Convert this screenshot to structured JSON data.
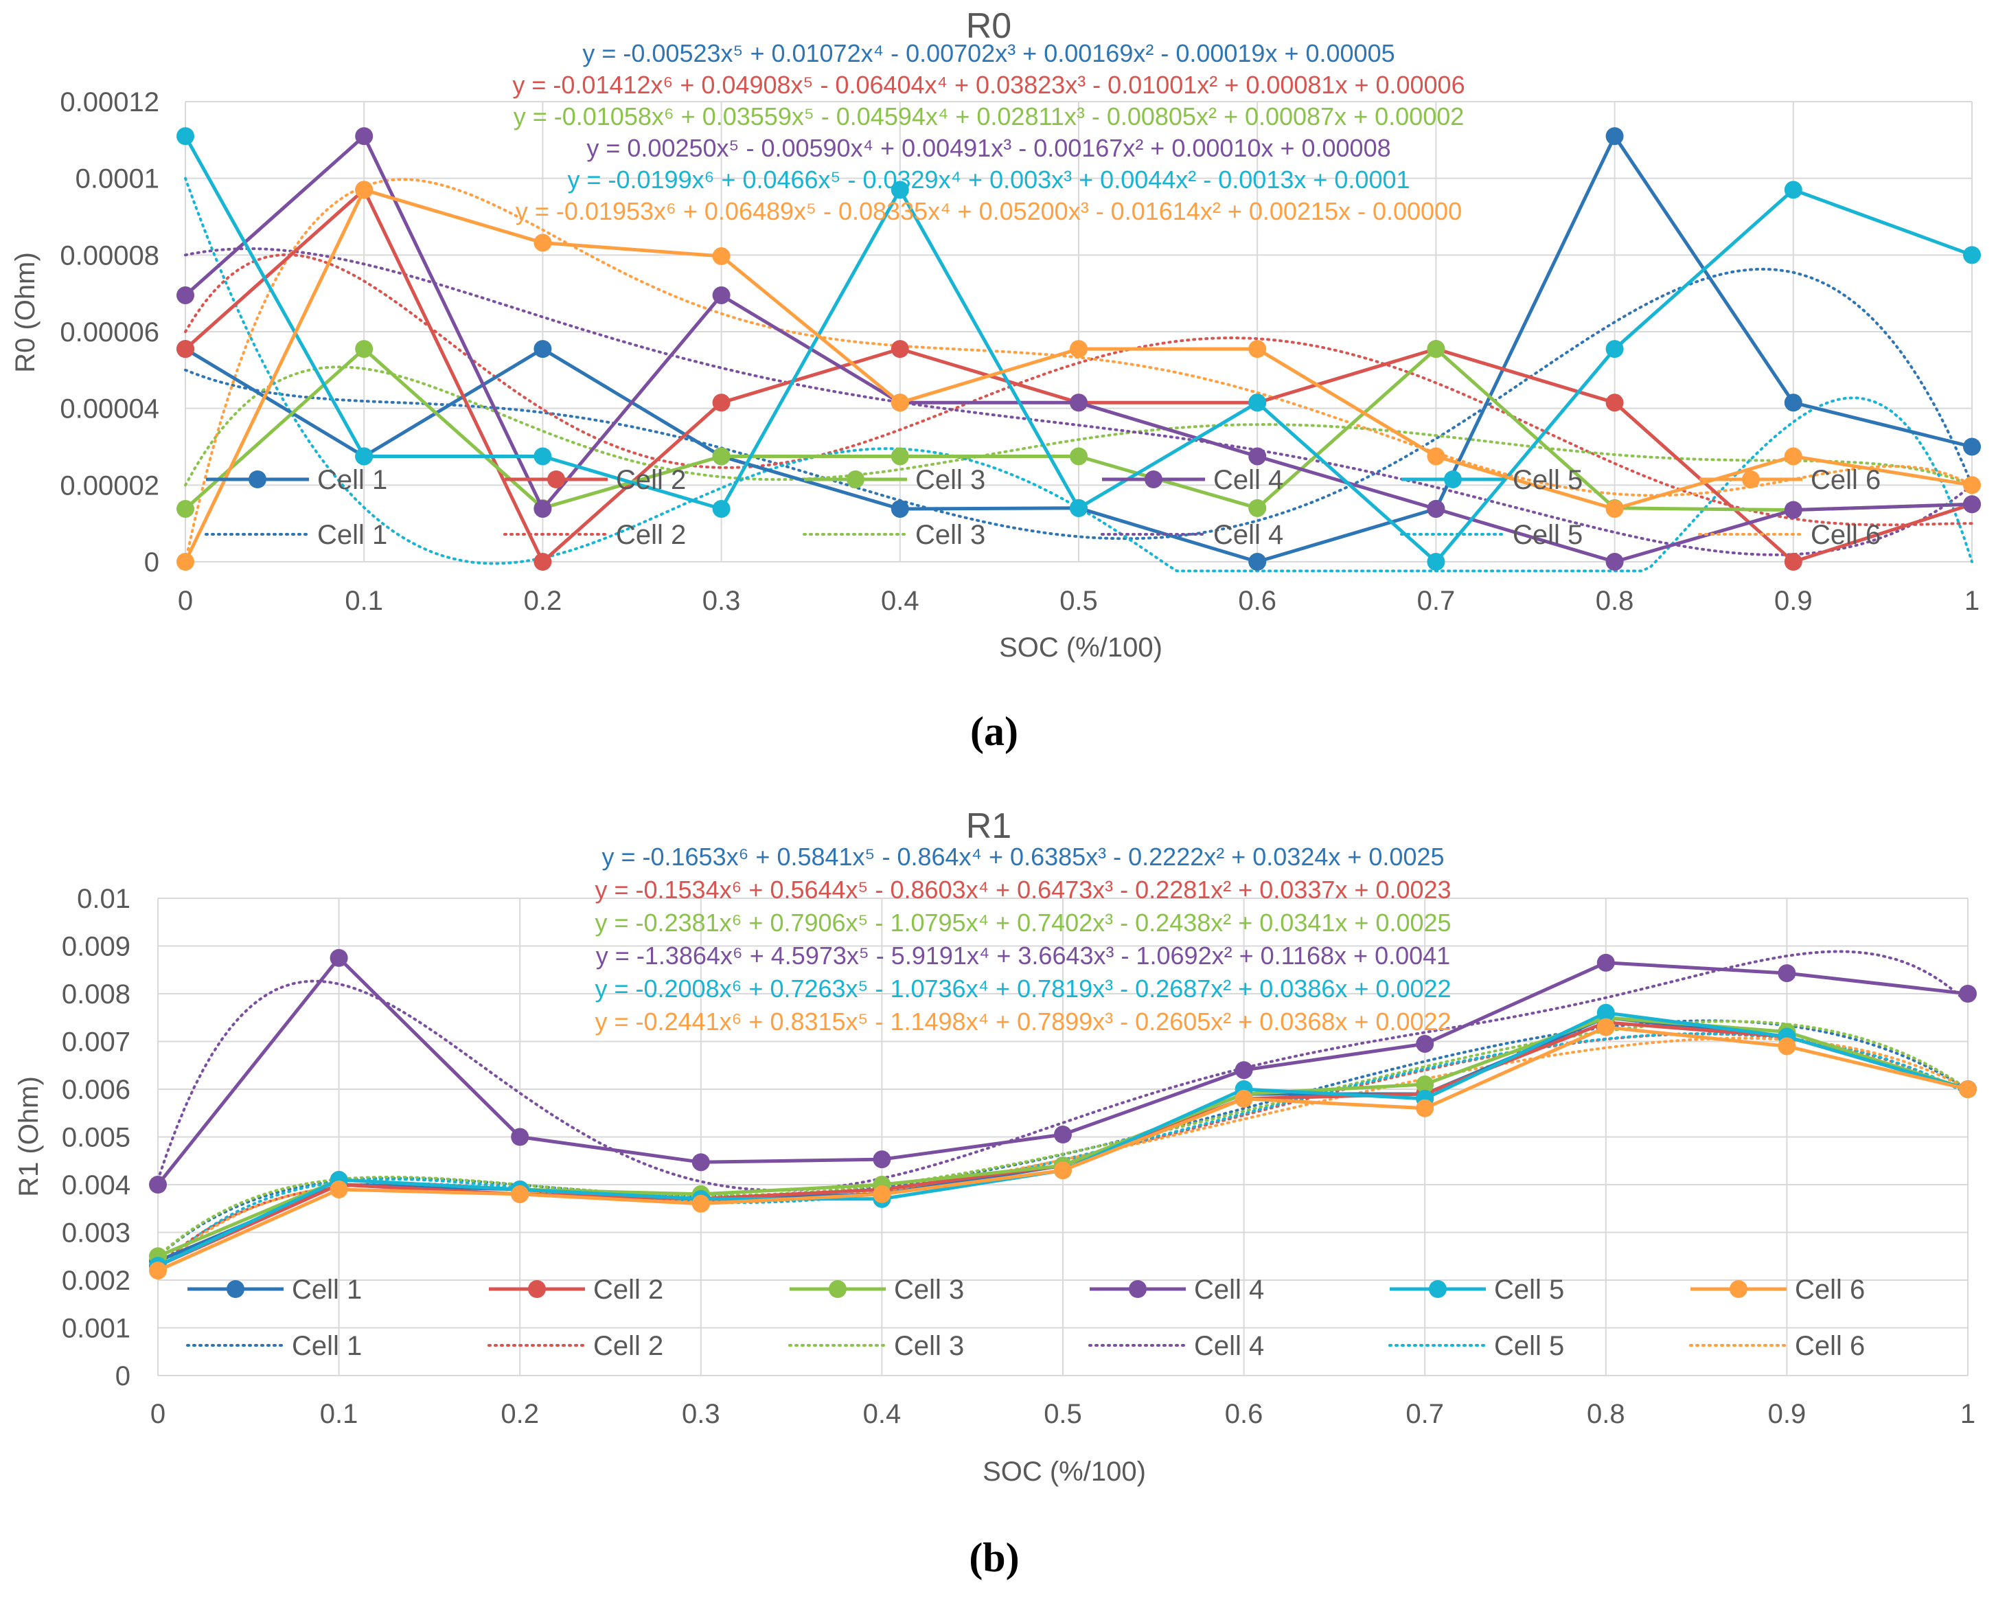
{
  "colors": {
    "cell_1": "#2E75B6",
    "cell_2": "#D9534F",
    "cell_3": "#8BC34A",
    "cell_4": "#7B4FA0",
    "cell_5": "#17B4D4",
    "cell_6": "#FF9F40",
    "grid": "#D9D9D9",
    "axis_text": "#595959"
  },
  "chart_data": [
    {
      "type": "line",
      "title": "R0",
      "caption": "(a)",
      "xlabel": "SOC (%/100)",
      "ylabel": "R0 (Ohm)",
      "xlim": [
        0,
        1
      ],
      "ylim": [
        0,
        0.00012
      ],
      "x_ticks": [
        "0",
        "0.1",
        "0.2",
        "0.3",
        "0.4",
        "0.5",
        "0.6",
        "0.7",
        "0.8",
        "0.9",
        "1"
      ],
      "y_ticks": [
        "0",
        "0.00002",
        "0.00004",
        "0.00006",
        "0.00008",
        "0.0001",
        "0.00012"
      ],
      "grid": true,
      "legend_position": "bottom-inside",
      "x": [
        0,
        0.1,
        0.2,
        0.3,
        0.4,
        0.5,
        0.6,
        0.7,
        0.8,
        0.9,
        1
      ],
      "series": [
        {
          "name": "Cell 1",
          "values": [
            5.55e-05,
            2.75e-05,
            5.55e-05,
            2.75e-05,
            1.38e-05,
            1.4e-05,
            0.0,
            1.38e-05,
            0.000111,
            4.15e-05,
            3e-05
          ]
        },
        {
          "name": "Cell 2",
          "values": [
            5.55e-05,
            9.7e-05,
            0.0,
            4.15e-05,
            5.55e-05,
            4.15e-05,
            4.15e-05,
            5.55e-05,
            4.15e-05,
            0.0,
            1.5e-05
          ]
        },
        {
          "name": "Cell 3",
          "values": [
            1.38e-05,
            5.55e-05,
            1.4e-05,
            2.75e-05,
            2.75e-05,
            2.75e-05,
            1.4e-05,
            5.55e-05,
            1.4e-05,
            1.35e-05,
            1.5e-05
          ]
        },
        {
          "name": "Cell 4",
          "values": [
            6.95e-05,
            0.000111,
            1.38e-05,
            6.95e-05,
            4.15e-05,
            4.15e-05,
            2.75e-05,
            1.38e-05,
            0.0,
            1.35e-05,
            1.5e-05
          ]
        },
        {
          "name": "Cell 5",
          "values": [
            0.000111,
            2.75e-05,
            2.75e-05,
            1.38e-05,
            9.7e-05,
            1.4e-05,
            4.15e-05,
            0.0,
            5.55e-05,
            9.7e-05,
            8e-05
          ]
        },
        {
          "name": "Cell 6",
          "values": [
            0.0,
            9.7e-05,
            8.32e-05,
            7.97e-05,
            4.15e-05,
            5.55e-05,
            5.55e-05,
            2.75e-05,
            1.38e-05,
            2.75e-05,
            2e-05
          ]
        }
      ],
      "trendlines": [
        {
          "name": "Cell 1",
          "equation": "y = -0.00523x⁵ + 0.01072x⁴ - 0.00702x³ + 0.00169x² - 0.00019x + 0.00005",
          "coefficients": [
            5e-05,
            -0.00019,
            0.00169,
            -0.00702,
            0.01072,
            -0.00523
          ]
        },
        {
          "name": "Cell 2",
          "equation": "y = -0.01412x⁶ + 0.04908x⁵ - 0.06404x⁴ + 0.03823x³ - 0.01001x² + 0.00081x + 0.00006",
          "coefficients": [
            6e-05,
            0.00081,
            -0.01001,
            0.03823,
            -0.06404,
            0.04908,
            -0.01412
          ]
        },
        {
          "name": "Cell 3",
          "equation": "y = -0.01058x⁶ + 0.03559x⁵ - 0.04594x⁴ + 0.02811x³ - 0.00805x² + 0.00087x + 0.00002",
          "coefficients": [
            2e-05,
            0.00087,
            -0.00805,
            0.02811,
            -0.04594,
            0.03559,
            -0.01058
          ]
        },
        {
          "name": "Cell 4",
          "equation": "y = 0.00250x⁵ - 0.00590x⁴ + 0.00491x³ - 0.00167x² + 0.00010x + 0.00008",
          "coefficients": [
            8e-05,
            0.0001,
            -0.00167,
            0.00491,
            -0.0059,
            0.0025
          ]
        },
        {
          "name": "Cell 5",
          "equation": "y = -0.0199x⁶ + 0.0466x⁵ - 0.0329x⁴ + 0.003x³ + 0.0044x² - 0.0013x + 0.0001",
          "coefficients": [
            0.0001,
            -0.0013,
            0.0044,
            0.003,
            -0.0329,
            0.0466,
            -0.0199
          ]
        },
        {
          "name": "Cell 6",
          "equation": "y = -0.01953x⁶ + 0.06489x⁵ - 0.08335x⁴ + 0.05200x³ - 0.01614x² + 0.00215x - 0.00000",
          "coefficients": [
            0.0,
            0.00215,
            -0.01614,
            0.052,
            -0.08335,
            0.06489,
            -0.01953
          ]
        }
      ]
    },
    {
      "type": "line",
      "title": "R1",
      "caption": "(b)",
      "xlabel": "SOC (%/100)",
      "ylabel": "R1 (Ohm)",
      "xlim": [
        0,
        1
      ],
      "ylim": [
        0,
        0.01
      ],
      "x_ticks": [
        "0",
        "0.1",
        "0.2",
        "0.3",
        "0.4",
        "0.5",
        "0.6",
        "0.7",
        "0.8",
        "0.9",
        "1"
      ],
      "y_ticks": [
        "0",
        "0.001",
        "0.002",
        "0.003",
        "0.004",
        "0.005",
        "0.006",
        "0.007",
        "0.008",
        "0.009",
        "0.01"
      ],
      "grid": true,
      "legend_position": "bottom-inside",
      "x": [
        0,
        0.1,
        0.2,
        0.3,
        0.4,
        0.5,
        0.6,
        0.7,
        0.8,
        0.9,
        1
      ],
      "series": [
        {
          "name": "Cell 1",
          "values": [
            0.0024,
            0.004,
            0.0039,
            0.0037,
            0.0038,
            0.0044,
            0.0059,
            0.0059,
            0.0075,
            0.0071,
            0.006
          ]
        },
        {
          "name": "Cell 2",
          "values": [
            0.0023,
            0.004,
            0.0038,
            0.0037,
            0.0039,
            0.0044,
            0.0058,
            0.0059,
            0.0074,
            0.0071,
            0.006
          ]
        },
        {
          "name": "Cell 3",
          "values": [
            0.0025,
            0.0041,
            0.0039,
            0.0038,
            0.004,
            0.0044,
            0.0059,
            0.0061,
            0.0075,
            0.0072,
            0.006
          ]
        },
        {
          "name": "Cell 4",
          "values": [
            0.004,
            0.00875,
            0.005,
            0.00447,
            0.00453,
            0.00505,
            0.0064,
            0.00695,
            0.00865,
            0.00843,
            0.008
          ]
        },
        {
          "name": "Cell 5",
          "values": [
            0.0023,
            0.0041,
            0.0039,
            0.0037,
            0.0037,
            0.0043,
            0.006,
            0.0058,
            0.0076,
            0.0071,
            0.006
          ]
        },
        {
          "name": "Cell 6",
          "values": [
            0.0022,
            0.0039,
            0.0038,
            0.0036,
            0.0038,
            0.0043,
            0.0058,
            0.0056,
            0.0073,
            0.0069,
            0.006
          ]
        }
      ],
      "trendlines": [
        {
          "name": "Cell 1",
          "equation": "y = -0.1653x⁶ + 0.5841x⁵ - 0.864x⁴ + 0.6385x³ - 0.2222x² + 0.0324x + 0.0025",
          "coefficients": [
            0.0025,
            0.0324,
            -0.2222,
            0.6385,
            -0.864,
            0.5841,
            -0.1653
          ]
        },
        {
          "name": "Cell 2",
          "equation": "y = -0.1534x⁶ + 0.5644x⁵ - 0.8603x⁴ + 0.6473x³ - 0.2281x² + 0.0337x + 0.0023",
          "coefficients": [
            0.0023,
            0.0337,
            -0.2281,
            0.6473,
            -0.8603,
            0.5644,
            -0.1534
          ]
        },
        {
          "name": "Cell 3",
          "equation": "y = -0.2381x⁶ + 0.7906x⁵ - 1.0795x⁴ + 0.7402x³ - 0.2438x² + 0.0341x + 0.0025",
          "coefficients": [
            0.0025,
            0.0341,
            -0.2438,
            0.7402,
            -1.0795,
            0.7906,
            -0.2381
          ]
        },
        {
          "name": "Cell 4",
          "equation": "y = -1.3864x⁶ + 4.5973x⁵ - 5.9191x⁴ + 3.6643x³ - 1.0692x² + 0.1168x + 0.0041",
          "coefficients": [
            0.0041,
            0.1168,
            -1.0692,
            3.6643,
            -5.9191,
            4.5973,
            -1.3864
          ]
        },
        {
          "name": "Cell 5",
          "equation": "y = -0.2008x⁶ + 0.7263x⁵ - 1.0736x⁴ + 0.7819x³ - 0.2687x² + 0.0386x + 0.0022",
          "coefficients": [
            0.0022,
            0.0386,
            -0.2687,
            0.7819,
            -1.0736,
            0.7263,
            -0.2008
          ]
        },
        {
          "name": "Cell 6",
          "equation": "y = -0.2441x⁶ + 0.8315x⁵ - 1.1498x⁴ + 0.7899x³ - 0.2605x² + 0.0368x + 0.0022",
          "coefficients": [
            0.0022,
            0.0368,
            -0.2605,
            0.7899,
            -1.1498,
            0.8315,
            -0.2441
          ]
        }
      ]
    }
  ]
}
